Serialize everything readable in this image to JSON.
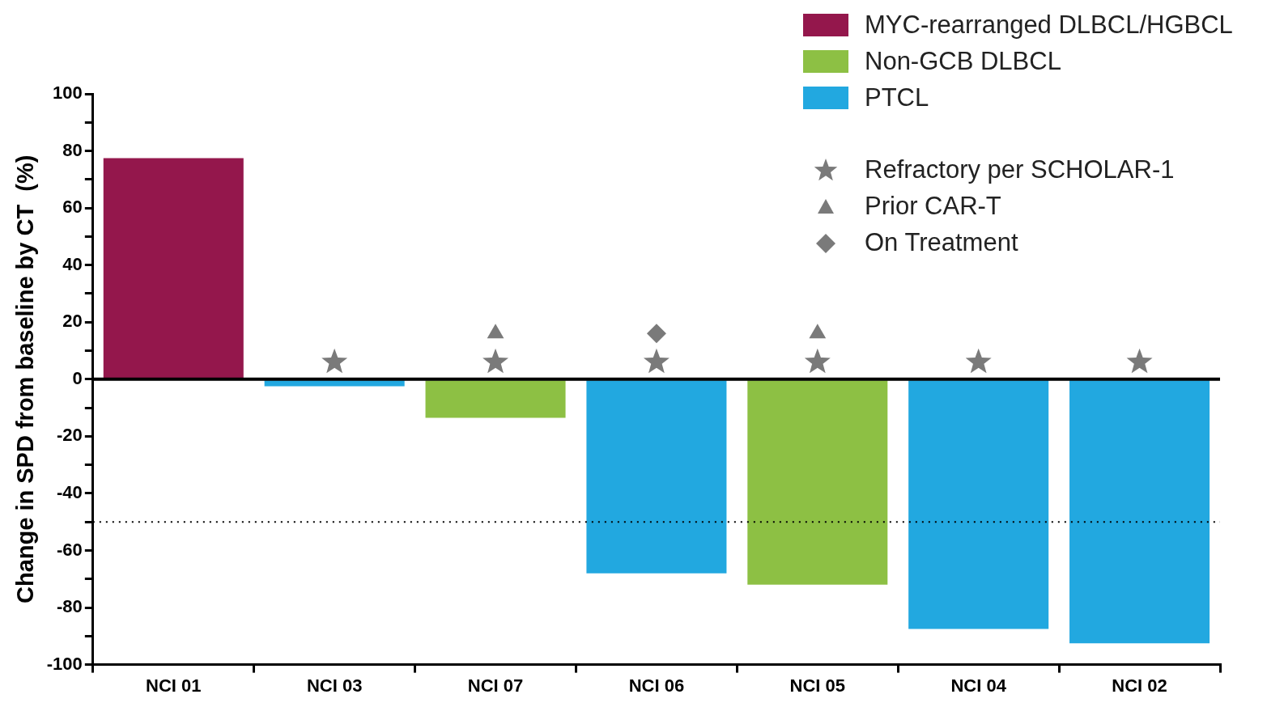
{
  "chart_data": {
    "type": "bar",
    "ylabel": "Change in SPD from baseline by CT  (%)",
    "categories": [
      "NCI 01",
      "NCI 03",
      "NCI 07",
      "NCI 06",
      "NCI 05",
      "NCI 04",
      "NCI 02"
    ],
    "stacked": true,
    "series": [
      {
        "name": "MYC-rearranged DLBCL/HGBCL",
        "color": "#94174c",
        "values": [
          77.5,
          null,
          null,
          null,
          null,
          null,
          null
        ]
      },
      {
        "name": "Non-GCB DLBCL",
        "color": "#8dc044",
        "values": [
          null,
          null,
          -13.5,
          null,
          -72,
          null,
          null
        ]
      },
      {
        "name": "PTCL",
        "color": "#22a8e0",
        "values": [
          null,
          -2.5,
          null,
          -68,
          null,
          -87.5,
          -92.5
        ]
      },
      {
        "name": "Refractory per SCHOLAR-1",
        "type": "scatter",
        "marker": "star",
        "color": "#7a7a7a",
        "x": [
          "NCI 03",
          "NCI 07",
          "NCI 06",
          "NCI 05",
          "NCI 04",
          "NCI 02"
        ],
        "values": [
          6,
          6,
          6,
          6,
          6,
          6
        ]
      },
      {
        "name": "Prior CAR-T",
        "type": "scatter",
        "marker": "triangle",
        "color": "#7a7a7a",
        "x": [
          "NCI 07",
          "NCI 05"
        ],
        "values": [
          16,
          16
        ]
      },
      {
        "name": "On Treatment",
        "type": "scatter",
        "marker": "diamond",
        "color": "#7a7a7a",
        "x": [
          "NCI 06"
        ],
        "values": [
          16
        ]
      }
    ],
    "ylim": [
      -100,
      100
    ],
    "yticks": [
      -100,
      {
        "value": -90,
        "label": null
      },
      -80,
      {
        "value": -70,
        "label": null
      },
      -60,
      {
        "value": -50,
        "label": null
      },
      -40,
      {
        "value": -30,
        "label": null
      },
      -20,
      {
        "value": -10,
        "label": null
      },
      0,
      {
        "value": 10,
        "label": null
      },
      20,
      {
        "value": 30,
        "label": null
      },
      40,
      {
        "value": 50,
        "label": null
      },
      60,
      {
        "value": 70,
        "label": null
      },
      80,
      {
        "value": 90,
        "label": null
      },
      100
    ],
    "ref_lines": [
      {
        "axis": "y",
        "value": 0,
        "color": "#000000",
        "line_style": "solid"
      },
      {
        "axis": "y",
        "value": -50,
        "color": "#000000",
        "line_style": "dotted"
      }
    ],
    "grid": false,
    "legend": "top right"
  }
}
